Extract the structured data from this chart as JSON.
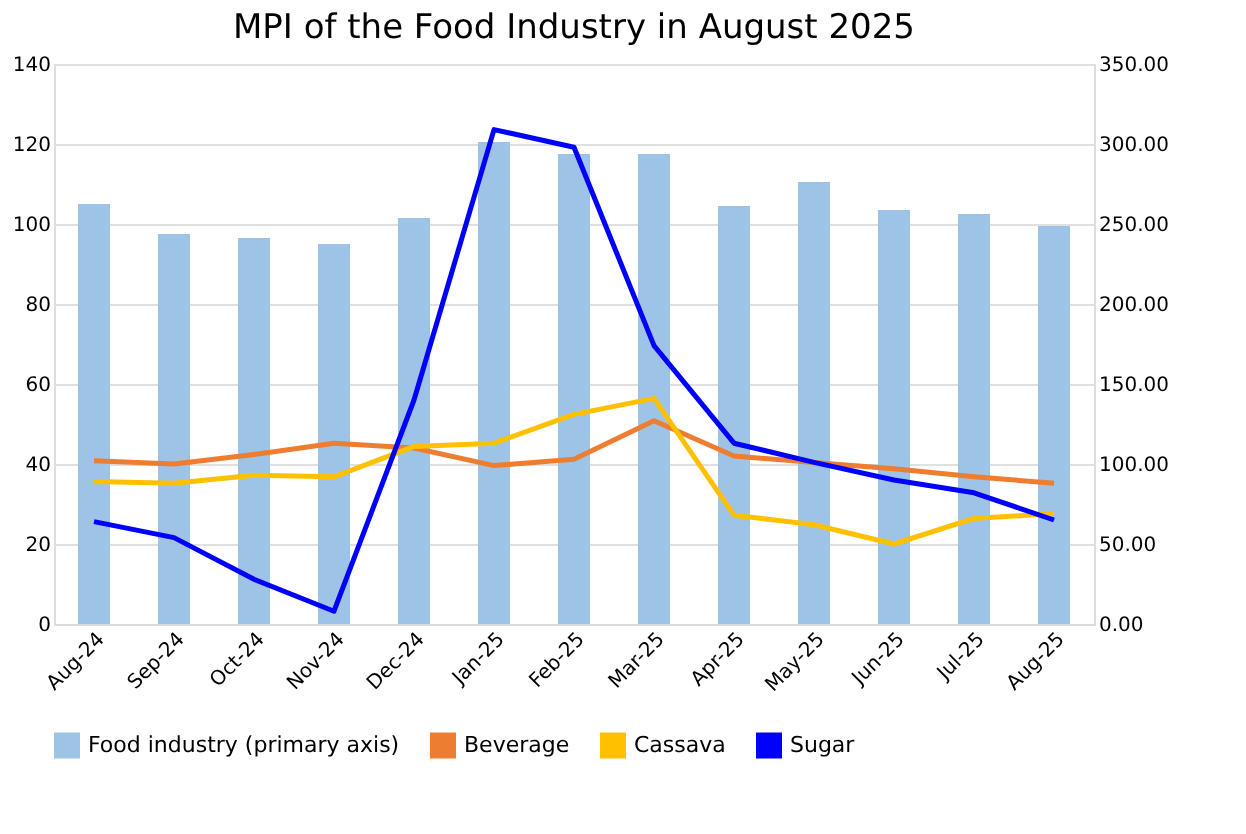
{
  "chart_data": {
    "type": "bar",
    "title": "MPI of the Food Industry in August 2025",
    "categories": [
      "Aug-24",
      "Sep-24",
      "Oct-24",
      "Nov-24",
      "Dec-24",
      "Jan-25",
      "Feb-25",
      "Mar-25",
      "Apr-25",
      "May-25",
      "Jun-25",
      "Jul-25",
      "Aug-25"
    ],
    "series": [
      {
        "name": "Food industry (primary axis)",
        "color": "#9dc3e6",
        "values": [
          105,
          97.5,
          96.5,
          95,
          101.5,
          120.5,
          117.5,
          117.5,
          104.5,
          110.5,
          103.5,
          102.5,
          99.5
        ]
      },
      {
        "name": "Beverage",
        "type": "line",
        "axis": "y2",
        "color": "#ed7d31",
        "values": [
          102,
          100,
          106,
          113,
          110,
          99,
          103,
          127,
          105,
          101,
          97,
          92,
          88
        ]
      },
      {
        "name": "Cassava",
        "type": "line",
        "axis": "y2",
        "color": "#ffc000",
        "values": [
          89,
          88,
          93,
          92,
          111,
          113,
          131,
          141,
          68,
          62,
          50,
          66,
          69
        ]
      },
      {
        "name": "Sugar",
        "type": "line",
        "axis": "y2",
        "color": "#0000ff",
        "values": [
          64,
          54,
          28,
          8,
          140,
          309,
          298,
          174,
          113,
          101,
          90,
          82,
          65
        ]
      }
    ],
    "ylim": [
      0,
      140
    ],
    "yticks": [
      0,
      20,
      40,
      60,
      80,
      100,
      120,
      140
    ],
    "y2lim": [
      0,
      350
    ],
    "y2ticks": [
      {
        "value": 0,
        "label": "0.00"
      },
      {
        "value": 50,
        "label": "50.00"
      },
      {
        "value": 100,
        "label": "100.00"
      },
      {
        "value": 150,
        "label": "150.00"
      },
      {
        "value": 200,
        "label": "200.00"
      },
      {
        "value": 250,
        "label": "250.00"
      },
      {
        "value": 300,
        "label": "300.00"
      },
      {
        "value": 350,
        "label": "350.00"
      }
    ],
    "grid": "y",
    "legend": "bottom",
    "marker": "none",
    "line_style": "solid"
  }
}
